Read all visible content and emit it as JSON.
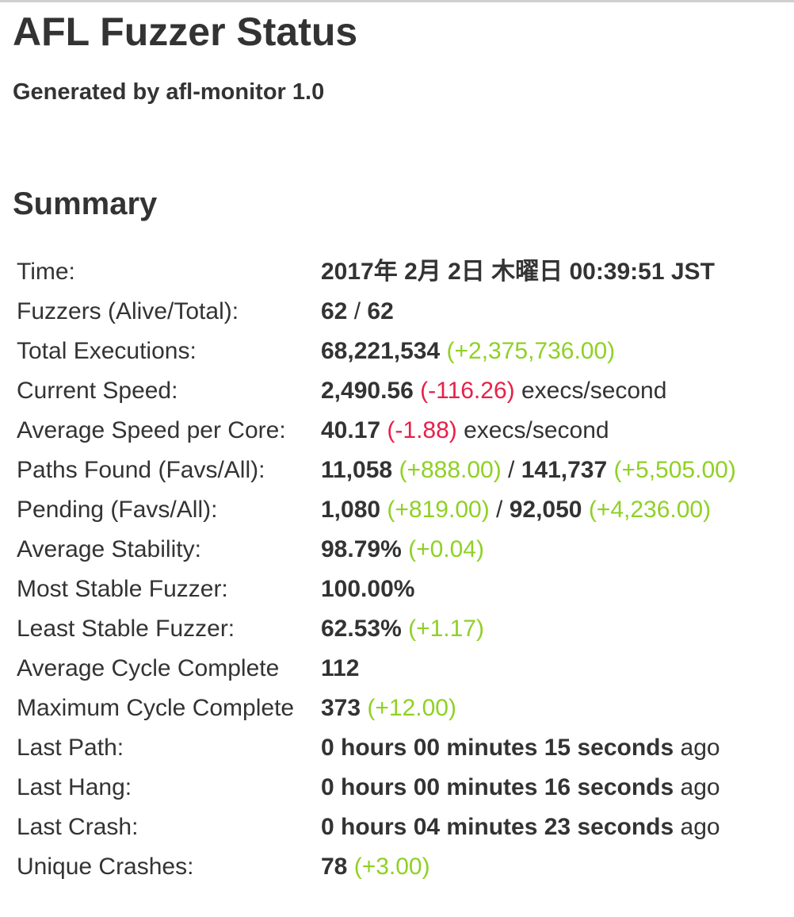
{
  "header": {
    "title": "AFL Fuzzer Status",
    "subtitle": "Generated by afl-monitor 1.0"
  },
  "summary": {
    "heading": "Summary",
    "rows": {
      "time": {
        "label": "Time:",
        "value": "2017年 2月 2日 木曜日 00:39:51 JST"
      },
      "fuzzers": {
        "label": "Fuzzers (Alive/Total):",
        "alive": "62",
        "sep": " / ",
        "total": "62"
      },
      "total_executions": {
        "label": "Total Executions:",
        "value": "68,221,534",
        "delta": "(+2,375,736.00)"
      },
      "current_speed": {
        "label": "Current Speed:",
        "value": "2,490.56",
        "delta": "(-116.26)",
        "unit": "execs/second"
      },
      "avg_speed_core": {
        "label": "Average Speed per Core:",
        "value": "40.17",
        "delta": "(-1.88)",
        "unit": "execs/second"
      },
      "paths_found": {
        "label": "Paths Found (Favs/All):",
        "favs": "11,058",
        "favs_delta": "(+888.00)",
        "sep": " / ",
        "all": "141,737",
        "all_delta": "(+5,505.00)"
      },
      "pending": {
        "label": "Pending (Favs/All):",
        "favs": "1,080",
        "favs_delta": "(+819.00)",
        "sep": " / ",
        "all": "92,050",
        "all_delta": "(+4,236.00)"
      },
      "avg_stability": {
        "label": "Average Stability:",
        "value": "98.79%",
        "delta": "(+0.04)"
      },
      "most_stable": {
        "label": "Most Stable Fuzzer:",
        "value": "100.00%"
      },
      "least_stable": {
        "label": "Least Stable Fuzzer:",
        "value": "62.53%",
        "delta": "(+1.17)"
      },
      "avg_cycle": {
        "label": "Average Cycle Complete",
        "value": "112"
      },
      "max_cycle": {
        "label": "Maximum Cycle Complete",
        "value": "373",
        "delta": "(+12.00)"
      },
      "last_path": {
        "label": "Last Path:",
        "value": "0 hours 00 minutes 15 seconds",
        "suffix": "ago"
      },
      "last_hang": {
        "label": "Last Hang:",
        "value": "0 hours 00 minutes 16 seconds",
        "suffix": "ago"
      },
      "last_crash": {
        "label": "Last Crash:",
        "value": "0 hours 04 minutes 23 seconds",
        "suffix": "ago"
      },
      "unique_crashes": {
        "label": "Unique Crashes:",
        "value": "78",
        "delta": "(+3.00)"
      }
    }
  },
  "colors": {
    "text": "#333333",
    "positive_delta": "#8fd124",
    "negative_delta": "#e8204a"
  }
}
